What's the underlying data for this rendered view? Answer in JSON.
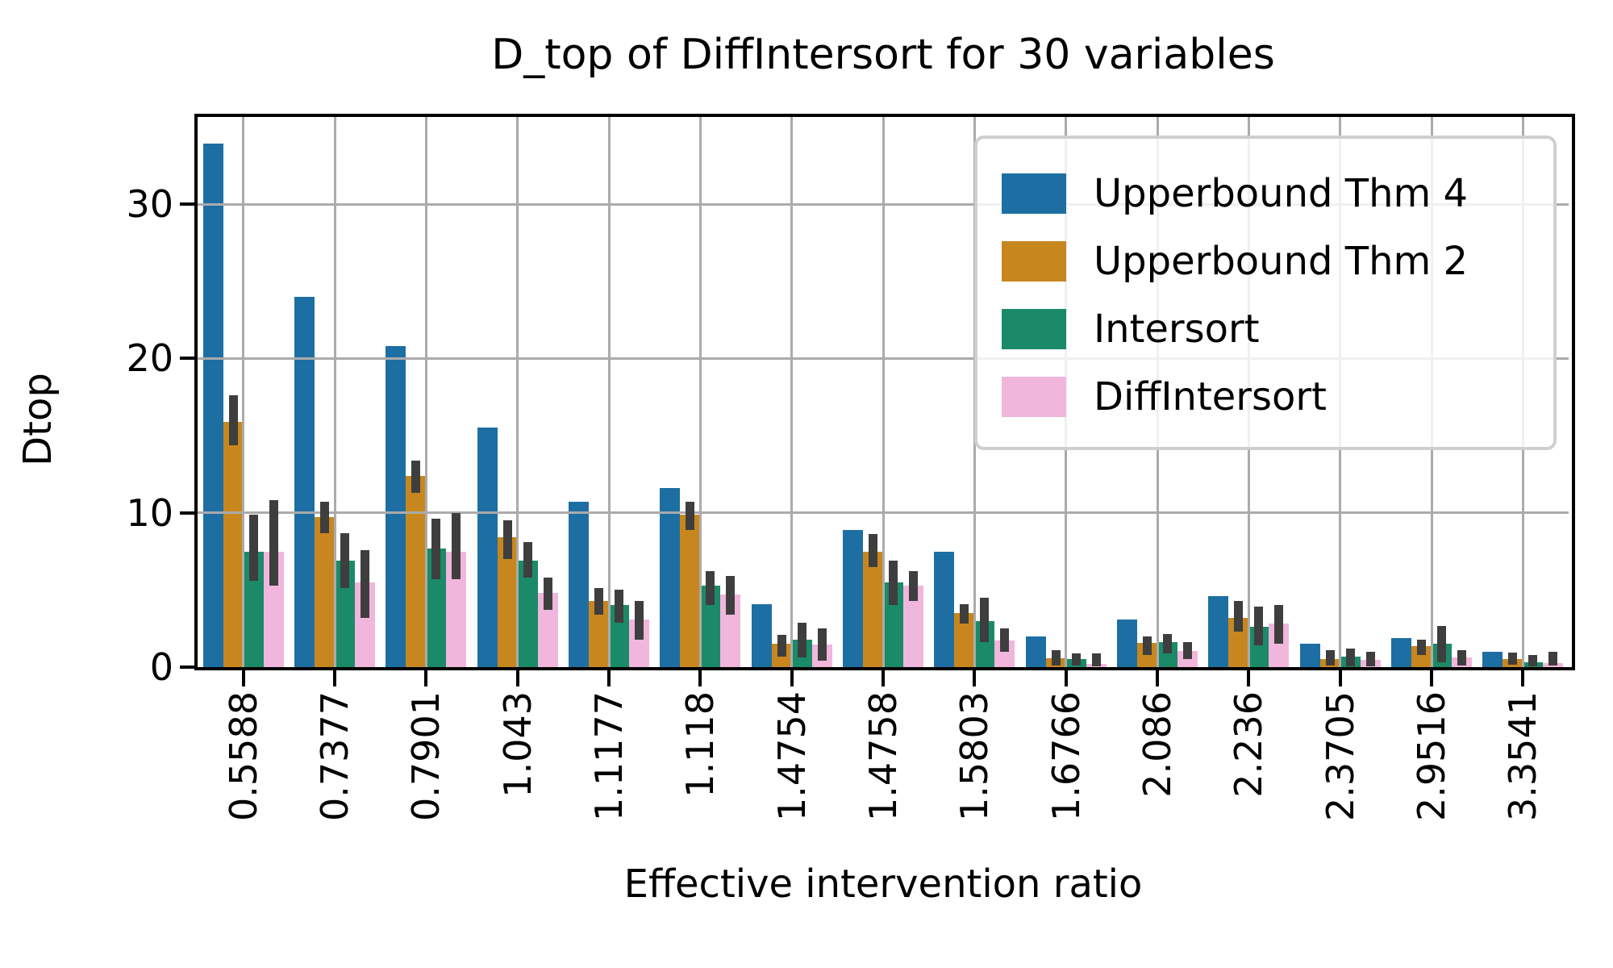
{
  "title": "D_top of DiffIntersort for 30 variables",
  "x_axis_label": "Effective intervention ratio",
  "y_axis_label": "Dtop",
  "colors": {
    "upperbound_thm_4": "#1d6fa3",
    "upperbound_thm_2": "#c8871e",
    "intersort": "#1b8a68",
    "diffintersort": "#f1b6dc",
    "error_bar": "#3e3e3e",
    "gridline": "#ababab",
    "axis": "#000000"
  },
  "legend": {
    "entries": [
      {
        "label": "Upperbound Thm 4",
        "color": "#1d6fa3"
      },
      {
        "label": "Upperbound Thm 2",
        "color": "#c8871e"
      },
      {
        "label": "Intersort",
        "color": "#1b8a68"
      },
      {
        "label": "DiffIntersort",
        "color": "#f1b6dc"
      }
    ]
  },
  "chart_data": {
    "type": "bar",
    "title": "D_top of DiffIntersort for 30 variables",
    "xlabel": "Effective intervention ratio",
    "ylabel": "Dtop",
    "categories": [
      "0.5588",
      "0.7377",
      "0.7901",
      "1.043",
      "1.1177",
      "1.118",
      "1.4754",
      "1.4758",
      "1.5803",
      "1.6766",
      "2.086",
      "2.236",
      "2.3705",
      "2.9516",
      "3.3541"
    ],
    "yticks": [
      0,
      10,
      20,
      30
    ],
    "ylim": [
      0,
      35.65
    ],
    "grid": true,
    "legend_position": "upper right",
    "series": [
      {
        "name": "Upperbound Thm 4",
        "color": "#1d6fa3",
        "values": [
          33.9,
          24.0,
          20.8,
          15.5,
          10.7,
          11.6,
          4.1,
          8.9,
          7.5,
          2.0,
          3.1,
          4.6,
          1.5,
          1.9,
          1.0
        ],
        "err_lo": null,
        "err_hi": null
      },
      {
        "name": "Upperbound Thm 2",
        "color": "#c8871e",
        "values": [
          15.9,
          9.7,
          12.4,
          8.4,
          4.3,
          9.9,
          1.5,
          7.5,
          3.5,
          0.6,
          1.55,
          3.2,
          0.5,
          1.35,
          0.5
        ],
        "err_lo": [
          14.4,
          8.7,
          11.3,
          7.0,
          3.4,
          8.9,
          0.7,
          6.5,
          2.8,
          0.1,
          0.8,
          2.3,
          0.1,
          0.8,
          0.15
        ],
        "err_hi": [
          17.6,
          10.7,
          13.4,
          9.5,
          5.1,
          10.7,
          2.1,
          8.6,
          4.1,
          1.1,
          2.0,
          4.3,
          1.1,
          1.8,
          0.95
        ]
      },
      {
        "name": "Intersort",
        "color": "#1b8a68",
        "values": [
          7.5,
          6.9,
          7.7,
          6.9,
          4.0,
          5.3,
          1.8,
          5.5,
          3.0,
          0.5,
          1.6,
          2.6,
          0.7,
          1.5,
          0.3
        ],
        "err_lo": [
          5.6,
          5.1,
          5.7,
          5.8,
          2.9,
          4.0,
          0.65,
          4.0,
          1.6,
          0.1,
          0.9,
          1.4,
          0.05,
          0.3,
          0.05
        ],
        "err_hi": [
          9.9,
          8.7,
          9.6,
          8.1,
          5.0,
          6.2,
          2.85,
          6.9,
          4.5,
          0.9,
          2.15,
          3.9,
          1.2,
          2.65,
          0.8
        ]
      },
      {
        "name": "DiffIntersort",
        "color": "#f1b6dc",
        "values": [
          7.5,
          5.5,
          7.5,
          4.8,
          3.1,
          4.7,
          1.45,
          5.3,
          1.7,
          0.2,
          1.05,
          2.8,
          0.45,
          0.65,
          0.25
        ],
        "err_lo": [
          5.3,
          3.2,
          5.7,
          3.7,
          1.8,
          3.4,
          0.4,
          4.3,
          1.0,
          0.05,
          0.5,
          1.5,
          0.05,
          0.1,
          0.1
        ],
        "err_hi": [
          10.8,
          7.6,
          10.0,
          5.8,
          4.3,
          5.9,
          2.5,
          6.2,
          2.5,
          0.9,
          1.6,
          4.0,
          1.0,
          1.1,
          1.0
        ]
      }
    ]
  }
}
